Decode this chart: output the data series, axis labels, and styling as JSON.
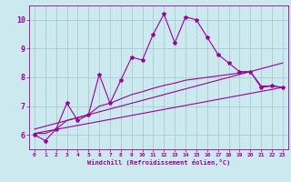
{
  "xlabel": "Windchill (Refroidissement éolien,°C)",
  "background_color": "#cce9f0",
  "line_color": "#990099",
  "grid_color": "#aacccc",
  "xlim": [
    -0.5,
    23.5
  ],
  "ylim": [
    5.5,
    10.5
  ],
  "yticks": [
    6,
    7,
    8,
    9,
    10
  ],
  "xticks": [
    0,
    1,
    2,
    3,
    4,
    5,
    6,
    7,
    8,
    9,
    10,
    11,
    12,
    13,
    14,
    15,
    16,
    17,
    18,
    19,
    20,
    21,
    22,
    23
  ],
  "series1_x": [
    0,
    1,
    2,
    3,
    4,
    5,
    6,
    7,
    8,
    9,
    10,
    11,
    12,
    13,
    14,
    15,
    16,
    17,
    18,
    19,
    20,
    21,
    22,
    23
  ],
  "series1_y": [
    6.0,
    5.8,
    6.2,
    7.1,
    6.5,
    6.7,
    8.1,
    7.1,
    7.9,
    8.7,
    8.6,
    9.5,
    10.2,
    9.2,
    10.1,
    10.0,
    9.4,
    8.8,
    8.5,
    8.2,
    8.2,
    7.65,
    7.7,
    7.65
  ],
  "series2_x": [
    0,
    1,
    2,
    3,
    4,
    5,
    6,
    7,
    8,
    9,
    10,
    11,
    12,
    13,
    14,
    15,
    16,
    17,
    18,
    19,
    20,
    21,
    22,
    23
  ],
  "series2_y": [
    6.05,
    6.05,
    6.2,
    6.5,
    6.6,
    6.7,
    7.0,
    7.1,
    7.25,
    7.4,
    7.5,
    7.62,
    7.72,
    7.8,
    7.9,
    7.95,
    8.0,
    8.05,
    8.1,
    8.15,
    8.2,
    7.7,
    7.7,
    7.65
  ],
  "series3_x": [
    0,
    23
  ],
  "series3_y": [
    6.05,
    7.65
  ],
  "series4_x": [
    0,
    23
  ],
  "series4_y": [
    6.2,
    8.5
  ]
}
